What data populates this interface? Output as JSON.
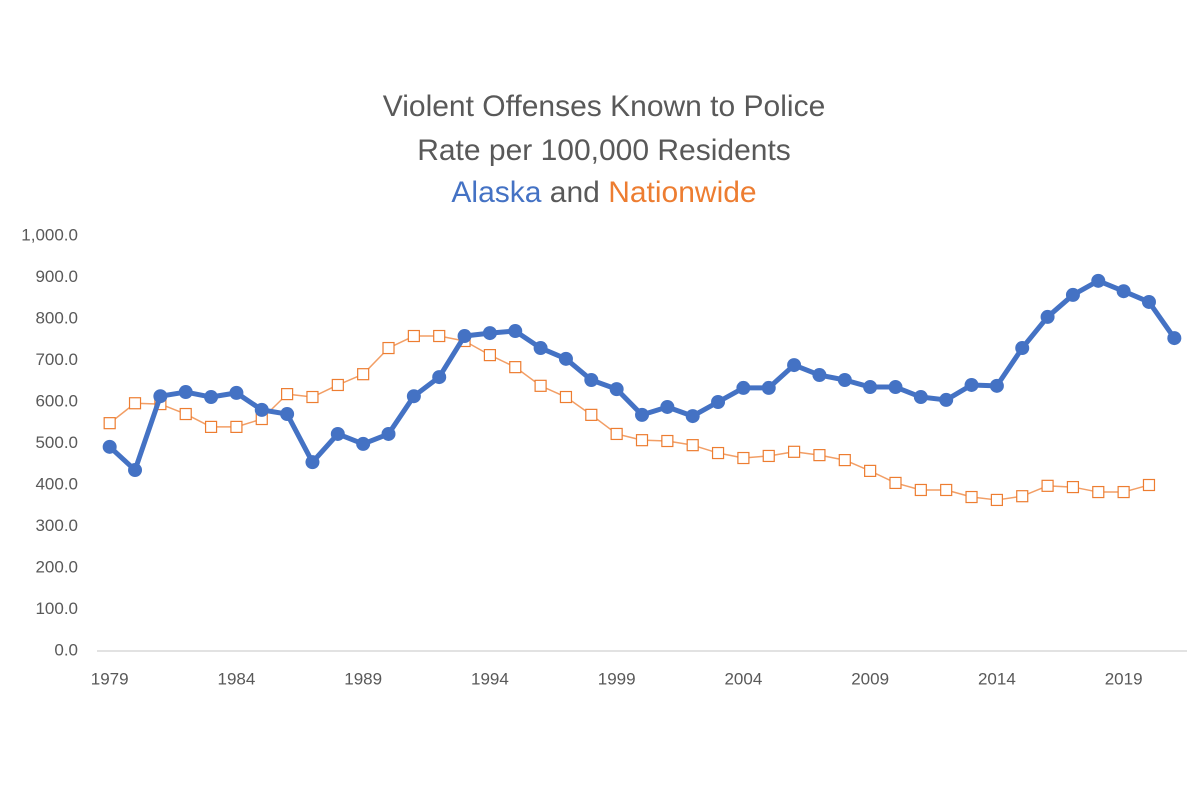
{
  "chart_data": {
    "type": "line",
    "title": "Violent Offenses Known to Police",
    "subtitle": "Rate per 100,000 Residents",
    "title_connector": "and",
    "x": [
      1979,
      1980,
      1981,
      1982,
      1983,
      1984,
      1985,
      1986,
      1987,
      1988,
      1989,
      1990,
      1991,
      1992,
      1993,
      1994,
      1995,
      1996,
      1997,
      1998,
      1999,
      2000,
      2001,
      2002,
      2003,
      2004,
      2005,
      2006,
      2007,
      2008,
      2009,
      2010,
      2011,
      2012,
      2013,
      2014,
      2015,
      2016,
      2017,
      2018,
      2019,
      2020,
      2021
    ],
    "series": [
      {
        "name": "Alaska",
        "color": "#4472c4",
        "marker": "circle",
        "values": [
          492,
          436,
          614,
          624,
          612,
          622,
          581,
          571,
          455,
          523,
          499,
          523,
          614,
          660,
          759,
          766,
          771,
          730,
          704,
          653,
          631,
          569,
          588,
          566,
          600,
          634,
          634,
          689,
          665,
          653,
          636,
          636,
          612,
          605,
          641,
          639,
          730,
          805,
          858,
          892,
          867,
          841,
          754
        ]
      },
      {
        "name": "Nationwide",
        "color": "#ed7d31",
        "marker": "square",
        "values": [
          549,
          597,
          595,
          571,
          540,
          540,
          559,
          619,
          612,
          641,
          667,
          730,
          759,
          759,
          747,
          713,
          684,
          639,
          612,
          569,
          523,
          508,
          506,
          496,
          477,
          465,
          470,
          480,
          472,
          460,
          434,
          405,
          388,
          388,
          371,
          364,
          373,
          398,
          395,
          383,
          383,
          400,
          null
        ]
      }
    ],
    "xlim": [
      1978.5,
      2021.5
    ],
    "xticks": [
      1979,
      1984,
      1989,
      1994,
      1999,
      2004,
      2009,
      2014,
      2019
    ],
    "ylim": [
      0,
      1000
    ],
    "yticks": [
      {
        "value": 0,
        "label": "0.0"
      },
      {
        "value": 100,
        "label": "100.0"
      },
      {
        "value": 200,
        "label": "200.0"
      },
      {
        "value": 300,
        "label": "300.0"
      },
      {
        "value": 400,
        "label": "400.0"
      },
      {
        "value": 500,
        "label": "500.0"
      },
      {
        "value": 600,
        "label": "600.0"
      },
      {
        "value": 700,
        "label": "700.0"
      },
      {
        "value": 800,
        "label": "800.0"
      },
      {
        "value": 900,
        "label": "900.0"
      },
      {
        "value": 1000,
        "label": "1,000.0"
      }
    ],
    "grid": false
  }
}
